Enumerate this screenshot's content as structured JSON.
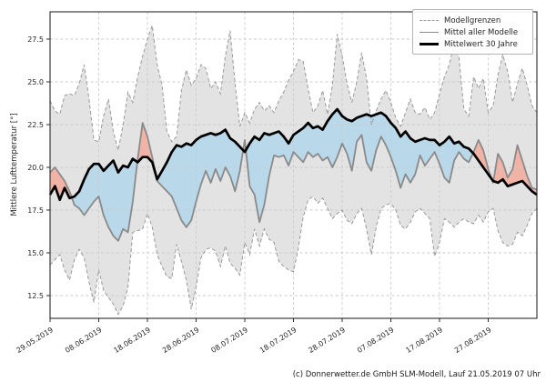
{
  "footer": {
    "credit": "(c) Donnerwetter.de GmbH SLM-Modell, Lauf 21.05.2019 07 Uhr"
  },
  "chart_data": {
    "type": "line",
    "title": "",
    "xlabel": "",
    "ylabel": "Mittlere Lufttemperatur [°]",
    "legend_position": "upper right",
    "grid": true,
    "legend": [
      "Modellgrenzen",
      "Mittel aller Modelle",
      "Mittelwert 30 Jahre"
    ],
    "x_tick_labels": [
      "29.05.2019",
      "08.06.2019",
      "18.06.2019",
      "28.06.2019",
      "08.07.2019",
      "18.07.2019",
      "28.07.2019",
      "07.08.2019",
      "17.08.2019",
      "27.08.2019"
    ],
    "x_tick_days": [
      0,
      10,
      20,
      30,
      40,
      50,
      60,
      70,
      80,
      90
    ],
    "y_ticks": [
      12.5,
      15.0,
      17.5,
      20.0,
      22.5,
      25.0,
      27.5
    ],
    "ylim": [
      11.2,
      29.1
    ],
    "xlim_days": [
      0,
      100
    ],
    "x_unit": "1 point per day starting 29.05.2019",
    "fills": {
      "band": "area between Modellgrenzen upper and lower",
      "warmer": "Mittel aller Modelle above Mittelwert 30 Jahre",
      "colder": "Mittel aller Modelle below Mittelwert 30 Jahre"
    },
    "colors": {
      "band_fill": "#e3e3e3",
      "band_edge": "#9a9a9a",
      "model_mean_line": "#8a8a8a",
      "climate_mean_line": "#000000",
      "warmer_fill": "#f2b3a7",
      "colder_fill": "#b9d8e9",
      "grid": "#cbcbcb",
      "spine": "#2b2b2b",
      "tick_text": "#262626"
    },
    "series": [
      {
        "name": "Modellgrenzen (obere Grenze)",
        "role": "upper",
        "values": [
          23.9,
          23.3,
          23.1,
          24.2,
          24.3,
          24.2,
          24.9,
          26.0,
          24.0,
          21.6,
          21.5,
          23.0,
          24.0,
          22.1,
          21.0,
          22.5,
          24.4,
          23.8,
          25.3,
          26.5,
          27.5,
          28.3,
          26.0,
          24.8,
          22.1,
          21.5,
          21.8,
          24.5,
          25.7,
          24.8,
          25.2,
          26.0,
          25.8,
          24.6,
          25.0,
          24.3,
          26.5,
          28.0,
          24.9,
          22.4,
          23.2,
          22.6,
          23.4,
          23.8,
          23.3,
          23.6,
          23.2,
          23.9,
          24.4,
          25.1,
          25.6,
          26.3,
          26.2,
          24.6,
          23.2,
          23.6,
          24.5,
          23.1,
          24.8,
          27.8,
          26.5,
          24.9,
          23.8,
          25.0,
          26.7,
          25.2,
          22.5,
          23.3,
          24.0,
          24.5,
          23.8,
          22.9,
          22.4,
          23.2,
          24.0,
          23.2,
          23.1,
          23.5,
          22.8,
          23.2,
          24.3,
          25.3,
          26.0,
          27.3,
          26.4,
          23.4,
          23.0,
          25.3,
          24.6,
          25.2,
          23.2,
          23.6,
          25.4,
          26.6,
          25.6,
          23.8,
          24.9,
          25.8,
          24.8,
          23.6,
          23.2
        ]
      },
      {
        "name": "Modellgrenzen (untere Grenze)",
        "role": "lower",
        "values": [
          14.3,
          14.6,
          14.9,
          14.0,
          13.4,
          14.6,
          15.2,
          14.7,
          13.3,
          12.1,
          14.0,
          12.8,
          12.4,
          12.0,
          11.4,
          11.9,
          13.0,
          16.2,
          16.3,
          16.4,
          17.3,
          16.5,
          14.9,
          14.2,
          13.6,
          13.5,
          15.5,
          14.5,
          13.4,
          11.7,
          13.0,
          14.7,
          15.2,
          15.3,
          15.1,
          14.2,
          15.4,
          14.4,
          14.1,
          13.7,
          15.6,
          14.9,
          16.4,
          15.4,
          16.4,
          15.8,
          15.6,
          14.5,
          14.2,
          14.0,
          13.9,
          15.3,
          17.1,
          18.1,
          18.3,
          17.9,
          18.2,
          17.6,
          17.0,
          17.3,
          17.5,
          16.9,
          16.7,
          17.3,
          17.6,
          16.4,
          14.9,
          16.5,
          17.6,
          17.8,
          17.9,
          17.5,
          16.6,
          16.4,
          16.8,
          17.4,
          17.6,
          17.3,
          17.0,
          14.8,
          15.6,
          17.0,
          16.8,
          16.5,
          16.8,
          17.0,
          16.8,
          16.7,
          17.2,
          16.8,
          17.4,
          17.6,
          16.3,
          15.6,
          15.4,
          15.5,
          16.2,
          16.0,
          16.6,
          17.3,
          17.6
        ]
      },
      {
        "name": "Mittel aller Modelle",
        "role": "model_mean",
        "values": [
          19.7,
          20.0,
          19.6,
          19.2,
          18.6,
          17.8,
          17.6,
          17.2,
          17.6,
          18.0,
          18.3,
          17.2,
          16.5,
          16.0,
          15.7,
          16.4,
          16.2,
          18.0,
          20.5,
          22.6,
          21.8,
          20.6,
          19.2,
          18.9,
          18.6,
          18.3,
          17.6,
          16.9,
          16.5,
          16.9,
          18.0,
          19.0,
          19.8,
          19.1,
          19.9,
          19.2,
          20.0,
          19.5,
          18.6,
          19.8,
          21.6,
          18.9,
          18.4,
          16.8,
          17.8,
          19.5,
          20.7,
          20.6,
          20.7,
          20.1,
          20.9,
          20.6,
          20.3,
          20.9,
          20.6,
          20.8,
          20.4,
          20.6,
          20.0,
          20.6,
          21.4,
          20.8,
          19.8,
          21.5,
          21.9,
          20.3,
          19.8,
          21.0,
          21.8,
          21.3,
          20.6,
          19.8,
          18.8,
          19.6,
          19.1,
          19.6,
          20.7,
          20.1,
          20.5,
          20.9,
          20.2,
          19.4,
          19.1,
          20.4,
          20.9,
          20.5,
          20.3,
          20.9,
          21.6,
          21.0,
          19.9,
          19.1,
          20.8,
          20.3,
          19.4,
          19.9,
          21.3,
          20.4,
          19.5,
          18.8,
          18.7
        ]
      },
      {
        "name": "Mittelwert 30 Jahre",
        "role": "climate_mean",
        "values": [
          18.4,
          18.9,
          18.1,
          18.8,
          18.2,
          18.3,
          18.6,
          19.3,
          19.9,
          20.2,
          20.2,
          19.8,
          20.1,
          20.4,
          19.7,
          20.1,
          20.0,
          20.5,
          20.3,
          20.6,
          20.6,
          20.3,
          19.3,
          19.8,
          20.3,
          20.9,
          21.3,
          21.2,
          21.4,
          21.3,
          21.6,
          21.8,
          21.9,
          22.0,
          21.9,
          22.0,
          22.2,
          21.7,
          21.5,
          21.2,
          20.9,
          21.4,
          21.8,
          21.6,
          22.0,
          21.9,
          22.0,
          22.1,
          21.8,
          21.4,
          21.9,
          22.1,
          22.3,
          22.6,
          22.3,
          22.4,
          22.2,
          22.7,
          23.1,
          23.4,
          23.0,
          22.8,
          22.7,
          22.9,
          23.0,
          23.1,
          23.0,
          23.1,
          23.2,
          23.0,
          22.6,
          22.3,
          21.8,
          22.1,
          21.7,
          21.5,
          21.6,
          21.7,
          21.6,
          21.6,
          21.3,
          21.5,
          21.8,
          21.4,
          21.5,
          21.2,
          21.1,
          20.8,
          20.4,
          20.0,
          19.6,
          19.2,
          19.1,
          19.3,
          18.9,
          19.0,
          19.1,
          19.2,
          18.9,
          18.6,
          18.4
        ]
      }
    ]
  }
}
